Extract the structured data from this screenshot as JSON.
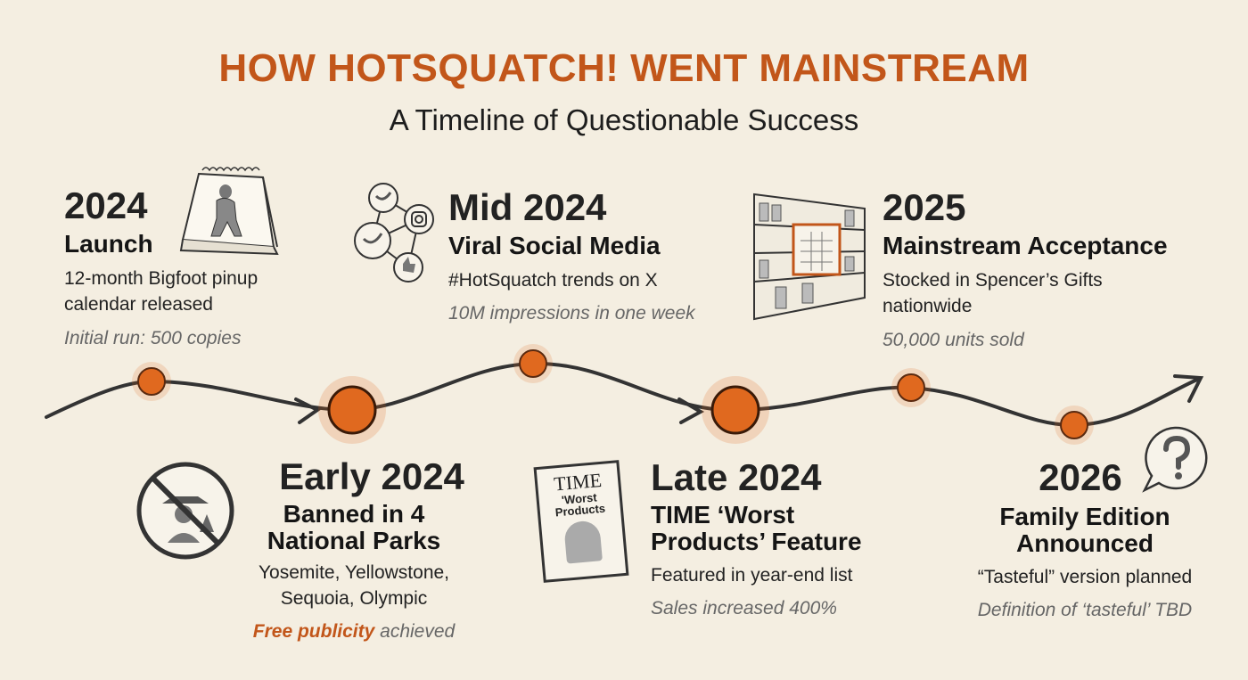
{
  "title": "HOW HOTSQUATCH! WENT MAINSTREAM",
  "subtitle": "A Timeline of Questionable Success",
  "colors": {
    "accent": "#c2561a",
    "dot": "#e0691f",
    "line": "#333333",
    "background": "#f4eee1"
  },
  "events": [
    {
      "year": "2024",
      "heading": "Launch",
      "desc": [
        "12-month Bigfoot pinup",
        "calendar released"
      ],
      "note": "Initial run: 500 copies",
      "icon": "bigfoot-calendar-icon"
    },
    {
      "year": "Early 2024",
      "heading": [
        "Banned in 4",
        "National Parks"
      ],
      "desc": [
        "Yosemite, Yellowstone,",
        "Sequoia, Olympic"
      ],
      "note_emphasis": "Free publicity",
      "note": "achieved",
      "icon": "no-ranger-icon"
    },
    {
      "year": "Mid 2024",
      "heading": "Viral Social Media",
      "desc": [
        "#HotSquatch trends on X"
      ],
      "note": "10M impressions in one week",
      "icon": "social-network-icon"
    },
    {
      "year": "Late 2024",
      "heading": [
        "TIME ‘Worst",
        "Products’ Feature"
      ],
      "desc": [
        "Featured in year-end list"
      ],
      "note": "Sales increased 400%",
      "icon": "time-magazine-icon",
      "icon_text": [
        "TIME",
        "'Worst",
        "Products"
      ]
    },
    {
      "year": "2025",
      "heading": "Mainstream Acceptance",
      "desc": [
        "Stocked in Spencer’s Gifts",
        "nationwide"
      ],
      "note": "50,000 units sold",
      "icon": "store-shelf-icon"
    },
    {
      "year": "2026",
      "heading": [
        "Family Edition",
        "Announced"
      ],
      "desc": [
        "“Tasteful” version planned"
      ],
      "note": "Definition of ‘tasteful’ TBD",
      "icon": "question-bubble-icon"
    }
  ]
}
